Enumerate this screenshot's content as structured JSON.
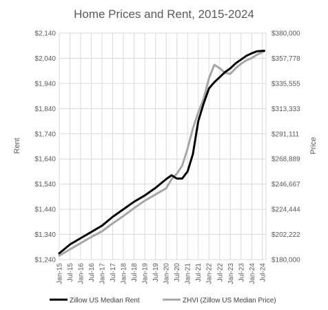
{
  "chart_data": {
    "type": "line",
    "title": "Home Prices and Rent, 2015-2024",
    "ylabel_left": "Rent",
    "ylabel_right": "Price",
    "xlabel": "",
    "x_tick_labels": [
      "Jan-15",
      "Jul-15",
      "Jan-16",
      "Jul-16",
      "Jan-17",
      "Jul-17",
      "Jan-18",
      "Jul-18",
      "Jan-19",
      "Jul-19",
      "Jan-20",
      "Jul-20",
      "Jan-21",
      "Jul-21",
      "Jan-22",
      "Jul-22",
      "Jan-23",
      "Jul-23",
      "Jan-24",
      "Jul-24"
    ],
    "x_tick_months": [
      0,
      6,
      12,
      18,
      24,
      30,
      36,
      42,
      48,
      54,
      60,
      66,
      72,
      78,
      84,
      90,
      96,
      102,
      108,
      114
    ],
    "x_range_months": [
      0,
      116
    ],
    "y_left": {
      "min": 1240,
      "max": 2140,
      "step": 100,
      "tick_labels": [
        "$1,240",
        "$1,340",
        "$1,440",
        "$1,540",
        "$1,640",
        "$1,740",
        "$1,840",
        "$1,940",
        "$2,040",
        "$2,140"
      ]
    },
    "y_right": {
      "min": 180000,
      "max": 380000,
      "tick_labels": [
        "$180,000",
        "$202,222",
        "$224,444",
        "$246,667",
        "$268,889",
        "$291,111",
        "$313,333",
        "$335,555",
        "$357,778",
        "$380,000"
      ]
    },
    "gridlines": true,
    "legend_position": "bottom",
    "series": [
      {
        "name": "Zillow US Median Rent",
        "axis": "left",
        "color": "#000000",
        "points": [
          [
            "Jan-15",
            1265
          ],
          [
            "Jul-15",
            1300
          ],
          [
            "Jan-16",
            1325
          ],
          [
            "Jul-16",
            1350
          ],
          [
            "Jan-17",
            1375
          ],
          [
            "Jul-17",
            1410
          ],
          [
            "Jan-18",
            1440
          ],
          [
            "Jul-18",
            1470
          ],
          [
            "Jan-19",
            1495
          ],
          [
            "Jul-19",
            1525
          ],
          [
            "Jan-20",
            1560
          ],
          [
            "Apr-20",
            1575
          ],
          [
            "Jul-20",
            1562
          ],
          [
            "Oct-20",
            1562
          ],
          [
            "Jan-21",
            1590
          ],
          [
            "Apr-21",
            1660
          ],
          [
            "Jul-21",
            1790
          ],
          [
            "Oct-21",
            1860
          ],
          [
            "Jan-22",
            1920
          ],
          [
            "Apr-22",
            1945
          ],
          [
            "Jul-22",
            1965
          ],
          [
            "Oct-22",
            1985
          ],
          [
            "Jan-23",
            2000
          ],
          [
            "Apr-23",
            2020
          ],
          [
            "Jul-23",
            2035
          ],
          [
            "Oct-23",
            2050
          ],
          [
            "Jan-24",
            2060
          ],
          [
            "Apr-24",
            2068
          ],
          [
            "Aug-24",
            2070
          ]
        ]
      },
      {
        "name": "ZHVI (Zillow US Median Price)",
        "axis": "right",
        "color": "#a6a6a6",
        "points": [
          [
            "Jan-15",
            183500
          ],
          [
            "Jul-15",
            189000
          ],
          [
            "Jan-16",
            194500
          ],
          [
            "Jul-16",
            200000
          ],
          [
            "Jan-17",
            205000
          ],
          [
            "Jul-17",
            212000
          ],
          [
            "Jan-18",
            218500
          ],
          [
            "Jul-18",
            225500
          ],
          [
            "Jan-19",
            232000
          ],
          [
            "Jul-19",
            237500
          ],
          [
            "Jan-20",
            243000
          ],
          [
            "Apr-20",
            251000
          ],
          [
            "Jul-20",
            256000
          ],
          [
            "Oct-20",
            263000
          ],
          [
            "Jan-21",
            278000
          ],
          [
            "Apr-21",
            296000
          ],
          [
            "Jul-21",
            310000
          ],
          [
            "Oct-21",
            322000
          ],
          [
            "Jan-22",
            340000
          ],
          [
            "Apr-22",
            352000
          ],
          [
            "Jul-22",
            349000
          ],
          [
            "Oct-22",
            345000
          ],
          [
            "Jan-23",
            344000
          ],
          [
            "Apr-23",
            349000
          ],
          [
            "Jul-23",
            353000
          ],
          [
            "Oct-23",
            356000
          ],
          [
            "Jan-24",
            358000
          ],
          [
            "Apr-24",
            361000
          ],
          [
            "Aug-24",
            364000
          ]
        ]
      }
    ]
  }
}
